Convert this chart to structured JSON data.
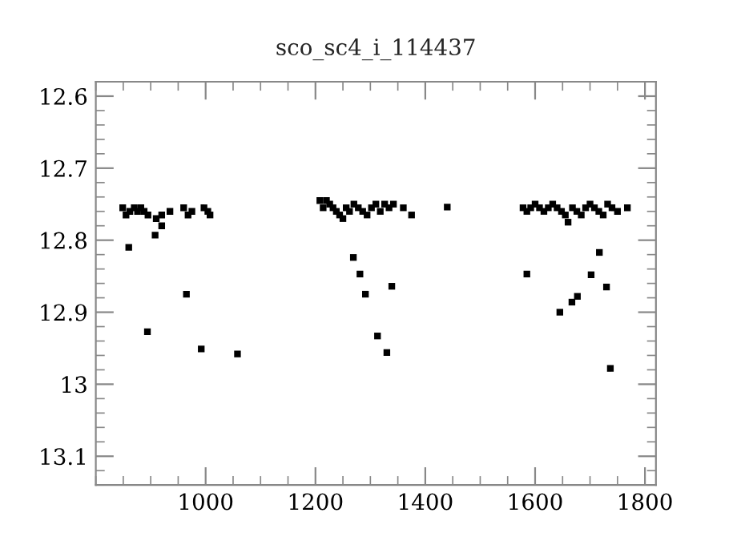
{
  "chart_data": {
    "type": "scatter",
    "title": "sco_sc4_i_114437",
    "marker": "square",
    "grid": false,
    "xlim": [
      800,
      1820
    ],
    "xticks": [
      1000,
      1200,
      1400,
      1600,
      1800
    ],
    "ylim": [
      13.14,
      12.58
    ],
    "yticks": [
      12.6,
      12.7,
      12.8,
      12.9,
      13,
      13.1
    ],
    "series": [
      {
        "color": "#000000",
        "x": [
          849,
          855,
          862,
          870,
          876,
          882,
          888,
          895,
          910,
          920,
          935,
          960,
          968,
          975,
          997,
          1004,
          1008,
          860,
          894,
          908,
          920,
          965,
          992,
          1058,
          1208,
          1214,
          1220,
          1226,
          1232,
          1238,
          1244,
          1250,
          1256,
          1262,
          1270,
          1278,
          1286,
          1294,
          1302,
          1310,
          1318,
          1326,
          1334,
          1342,
          1360,
          1375,
          1269,
          1281,
          1291,
          1339,
          1313,
          1330,
          1440,
          1578,
          1585,
          1592,
          1600,
          1608,
          1616,
          1624,
          1632,
          1640,
          1648,
          1655,
          1660,
          1668,
          1676,
          1684,
          1692,
          1700,
          1708,
          1716,
          1724,
          1732,
          1740,
          1750,
          1768,
          1585,
          1645,
          1667,
          1677,
          1702,
          1717,
          1730,
          1737
        ],
        "values": [
          12.755,
          12.765,
          12.76,
          12.755,
          12.76,
          12.755,
          12.76,
          12.765,
          12.77,
          12.765,
          12.76,
          12.755,
          12.765,
          12.76,
          12.755,
          12.76,
          12.765,
          12.81,
          12.927,
          12.793,
          12.78,
          12.875,
          12.951,
          12.958,
          12.745,
          12.755,
          12.745,
          12.75,
          12.755,
          12.76,
          12.765,
          12.77,
          12.755,
          12.76,
          12.75,
          12.755,
          12.76,
          12.765,
          12.755,
          12.75,
          12.76,
          12.75,
          12.755,
          12.75,
          12.755,
          12.765,
          12.824,
          12.847,
          12.875,
          12.864,
          12.933,
          12.956,
          12.754,
          12.755,
          12.76,
          12.755,
          12.75,
          12.755,
          12.76,
          12.755,
          12.75,
          12.755,
          12.76,
          12.765,
          12.775,
          12.755,
          12.76,
          12.765,
          12.755,
          12.75,
          12.755,
          12.76,
          12.765,
          12.75,
          12.755,
          12.76,
          12.755,
          12.847,
          12.9,
          12.886,
          12.878,
          12.848,
          12.817,
          12.865,
          12.978
        ]
      }
    ]
  }
}
